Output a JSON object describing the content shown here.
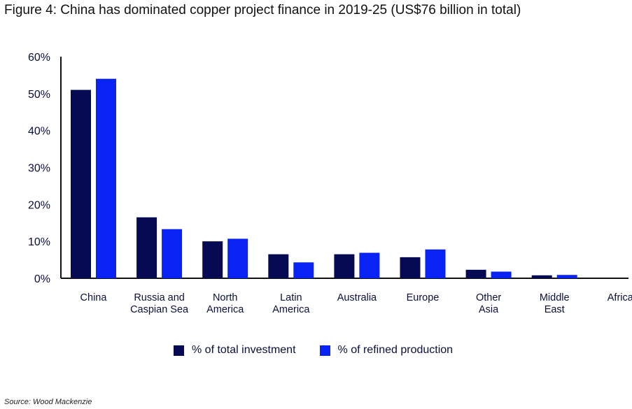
{
  "figure_title": "Figure 4: China has dominated copper project finance in 2019-25 (US$76 billion in total)",
  "source": "Source: Wood Mackenzie",
  "colors": {
    "investment": "#050a52",
    "production": "#0a23f5",
    "axis": "#111111",
    "text": "#0b0f3a"
  },
  "chart_data": {
    "type": "bar",
    "title": "",
    "xlabel": "",
    "ylabel": "",
    "ylim": [
      0,
      60
    ],
    "yticks": [
      "0%",
      "10%",
      "20%",
      "30%",
      "40%",
      "50%",
      "60%"
    ],
    "ytick_values": [
      0,
      10,
      20,
      30,
      40,
      50,
      60
    ],
    "categories": [
      [
        "China"
      ],
      [
        "Russia and",
        "Caspian Sea"
      ],
      [
        "North",
        "America"
      ],
      [
        "Latin",
        "America"
      ],
      [
        "Australia"
      ],
      [
        "Europe"
      ],
      [
        "Other",
        "Asia"
      ],
      [
        "Middle",
        "East"
      ],
      [
        "Africa"
      ]
    ],
    "series": [
      {
        "name": "% of total investment",
        "color_key": "investment",
        "values": [
          51,
          16.5,
          10,
          6.5,
          6.5,
          5.7,
          2.3,
          0.8,
          0
        ]
      },
      {
        "name": "% of refined production",
        "color_key": "production",
        "values": [
          54,
          13.3,
          10.7,
          4.3,
          6.9,
          7.8,
          1.8,
          0.9,
          0
        ]
      }
    ],
    "legend": "bottom-center",
    "grid": false
  }
}
